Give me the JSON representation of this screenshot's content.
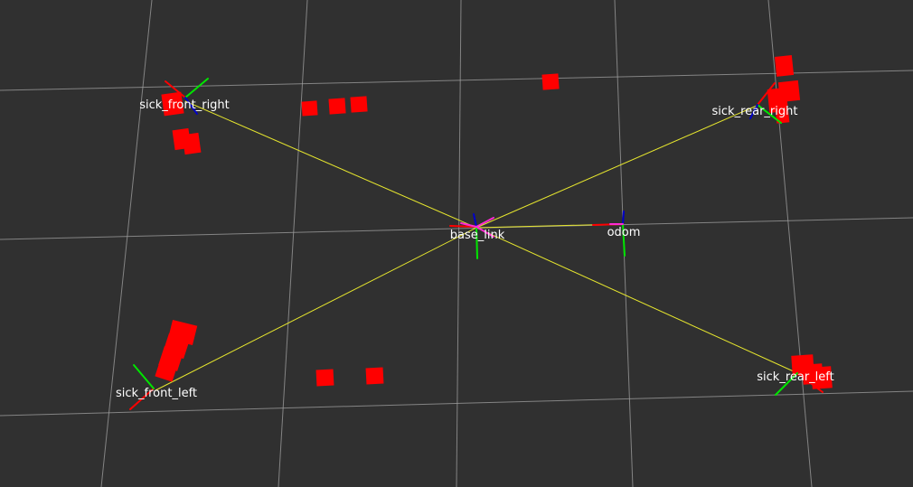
{
  "view": {
    "background_color": "#303030",
    "grid_color": "#a0a0a0",
    "tf_link_color": "#e6e62e",
    "laser_point_color": "#ff0000",
    "axis_colors": {
      "x": "#ff0000",
      "y": "#00e600",
      "z": "#0000c8"
    }
  },
  "frames": {
    "base_link": "base_link",
    "odom": "odom",
    "sick_front_right": "sick_front_right",
    "sick_front_left": "sick_front_left",
    "sick_rear_right": "sick_rear_right",
    "sick_rear_left": "sick_rear_left"
  }
}
